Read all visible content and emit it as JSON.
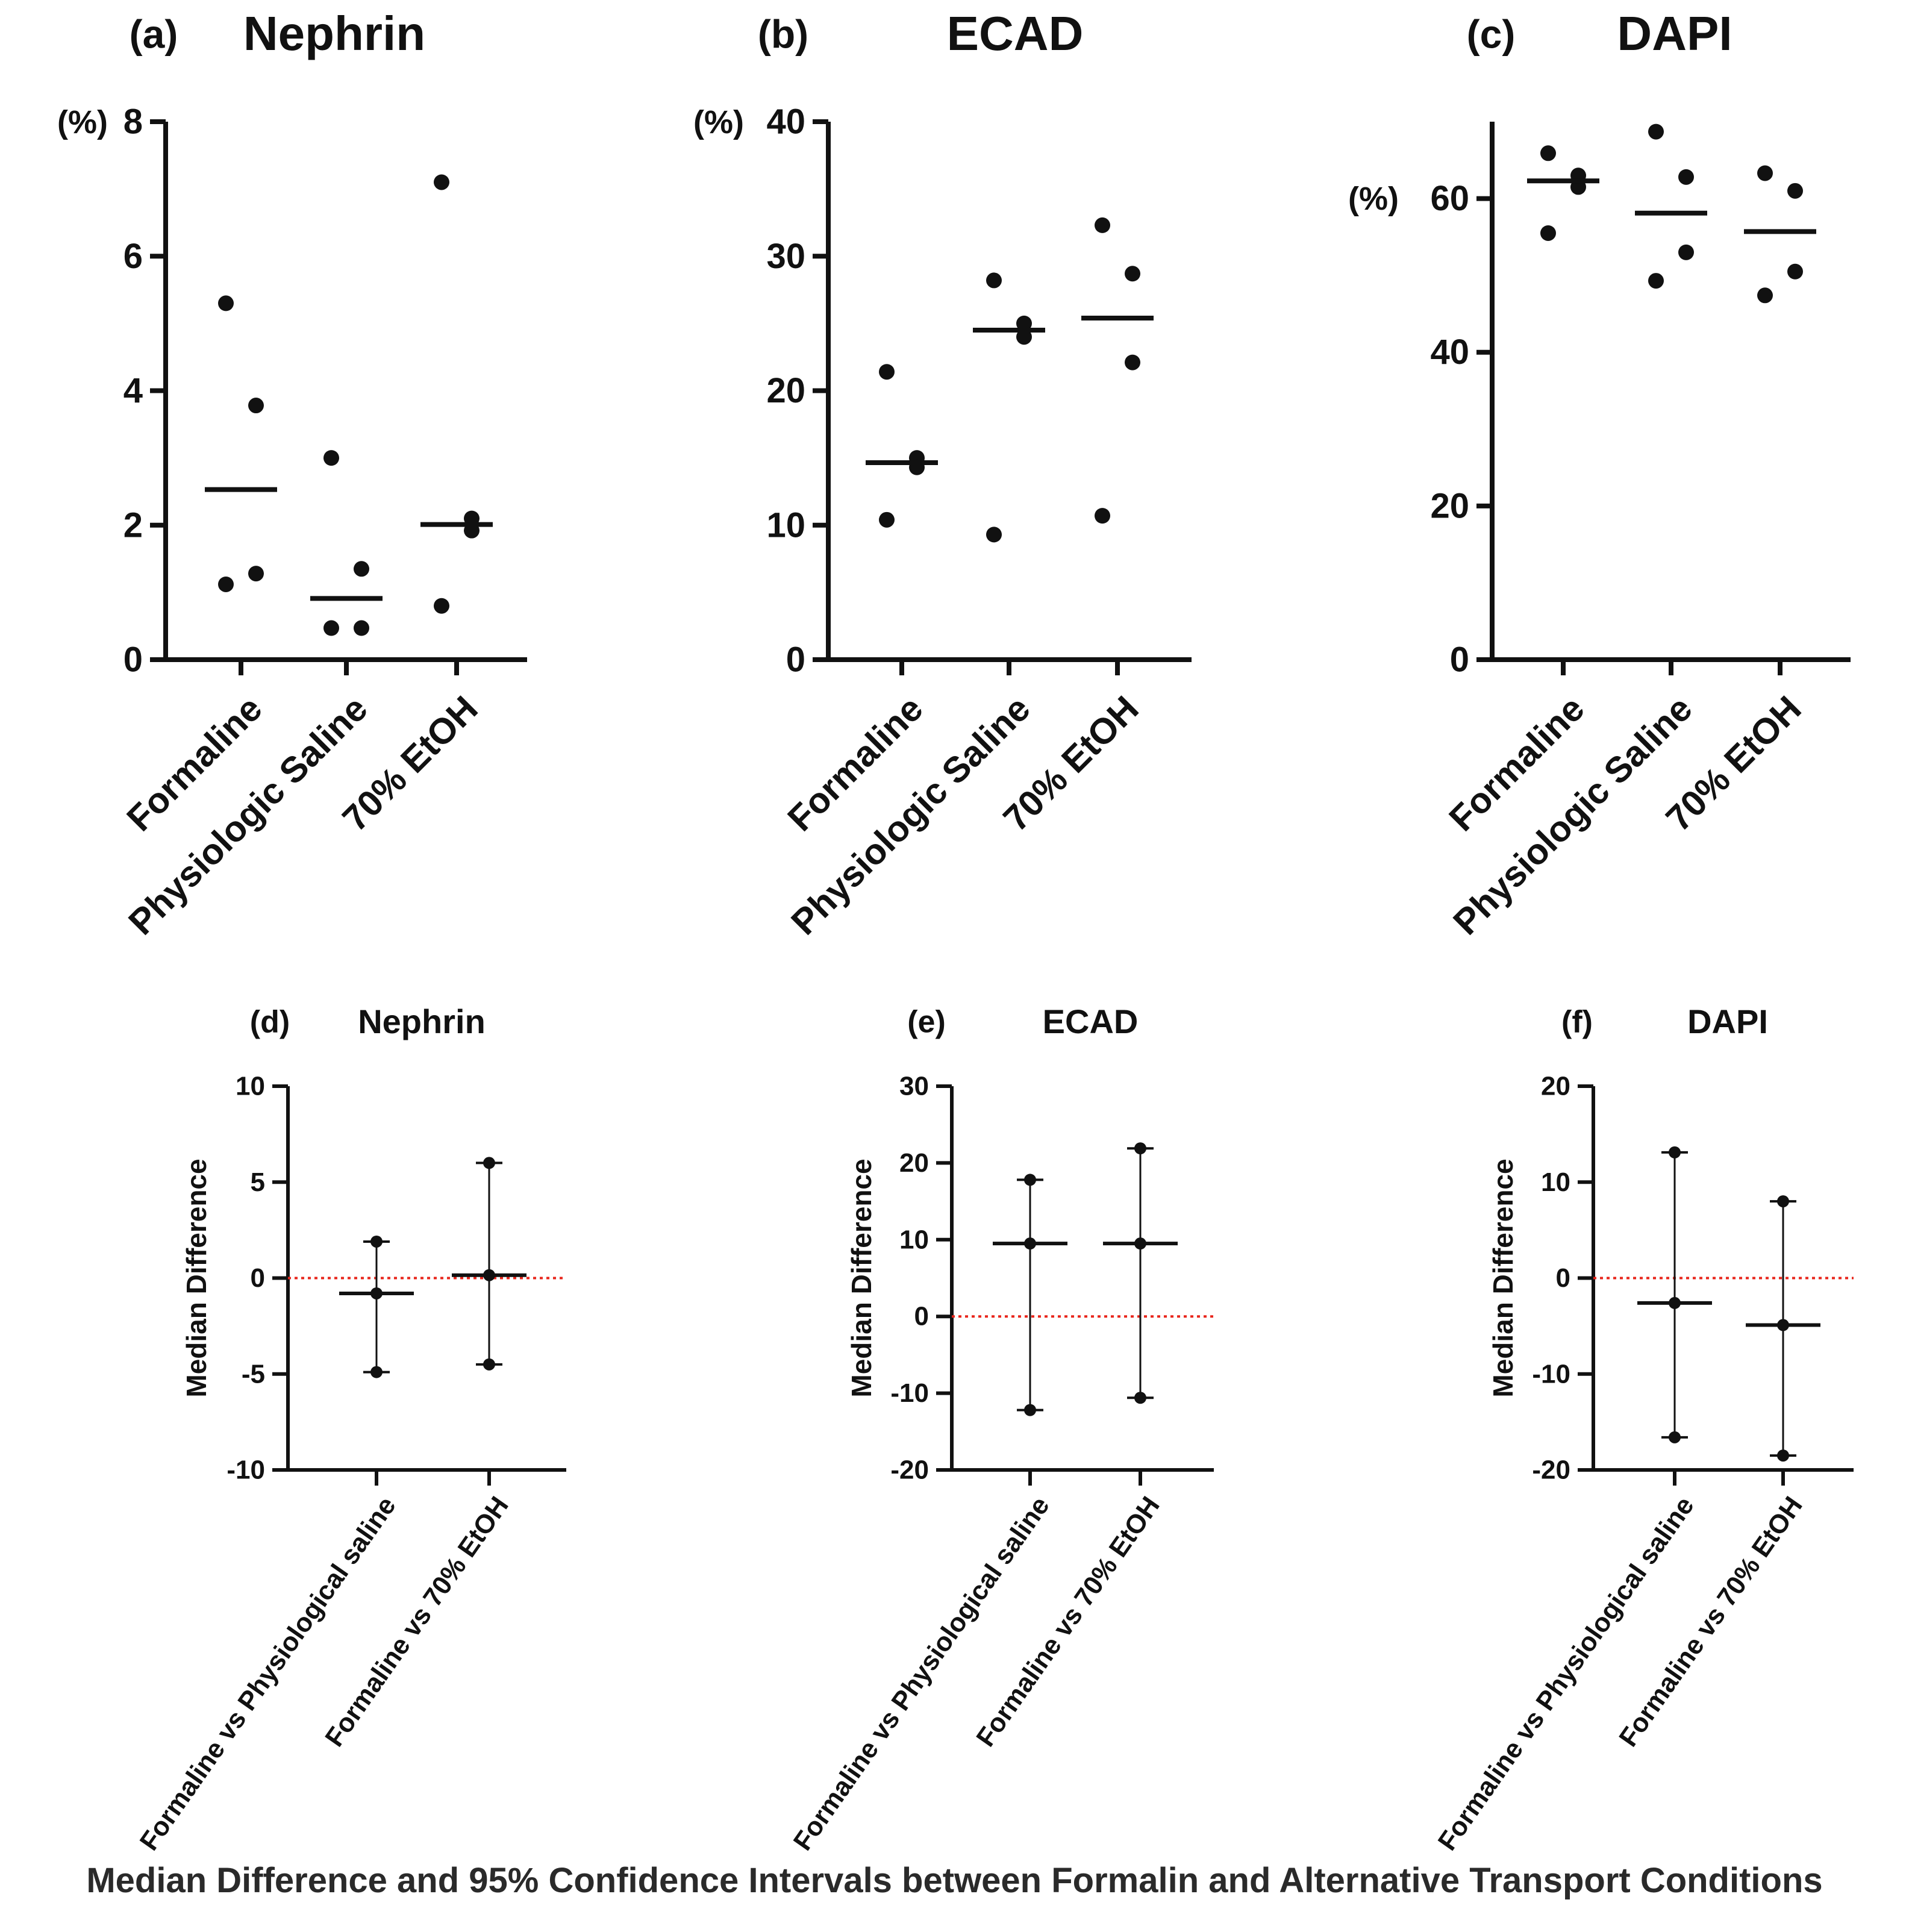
{
  "caption": "Median Difference and 95% Confidence Intervals between Formalin and Alternative Transport Conditions",
  "colors": {
    "ink": "#111111",
    "zero_line": "#e8261c"
  },
  "chart_data": [
    {
      "type": "scatter",
      "panel": "(a)",
      "title": "Nephrin",
      "unit": "(%)",
      "categories": [
        "Formaline",
        "Physiologic Saline",
        "70% EtOH"
      ],
      "ylim": [
        0,
        8
      ],
      "yticks": [
        0,
        2,
        4,
        6,
        8
      ],
      "points": [
        [
          5.3,
          3.78,
          1.28,
          1.12
        ],
        [
          3.0,
          1.35,
          0.47,
          0.47
        ],
        [
          7.1,
          2.1,
          1.92,
          0.8
        ]
      ],
      "medians": [
        2.53,
        0.91,
        2.01
      ]
    },
    {
      "type": "scatter",
      "panel": "(b)",
      "title": "ECAD",
      "unit": "(%)",
      "categories": [
        "Formaline",
        "Physiologic Saline",
        "70% EtOH"
      ],
      "ylim": [
        0,
        40
      ],
      "yticks": [
        0,
        10,
        20,
        30,
        40
      ],
      "points": [
        [
          21.4,
          15.0,
          14.3,
          10.4
        ],
        [
          28.2,
          25.0,
          24.0,
          9.3
        ],
        [
          32.3,
          28.7,
          22.1,
          10.7
        ]
      ],
      "medians": [
        14.65,
        24.5,
        25.4
      ]
    },
    {
      "type": "scatter",
      "panel": "(c)",
      "title": "DAPI",
      "unit": "(%)",
      "categories": [
        "Formaline",
        "Physiologic Saline",
        "70% EtOH"
      ],
      "ylim": [
        0,
        70
      ],
      "yticks": [
        0,
        20,
        40,
        60
      ],
      "points": [
        [
          65.9,
          63.0,
          61.5,
          55.5
        ],
        [
          68.7,
          62.8,
          53.0,
          49.3
        ],
        [
          63.3,
          61.0,
          50.5,
          47.4
        ]
      ],
      "medians": [
        62.3,
        58.1,
        55.7
      ]
    },
    {
      "type": "errorbar",
      "panel": "(d)",
      "title": "Nephrin",
      "ylabel": "Median Difference",
      "categories": [
        "Formaline vs Physiological saline",
        "Formaline vs 70% EtOH"
      ],
      "ylim": [
        -10,
        10
      ],
      "yticks": [
        -10,
        -5,
        0,
        5,
        10
      ],
      "estimates": [
        -0.8,
        0.15
      ],
      "lower": [
        -4.9,
        -4.5
      ],
      "upper": [
        1.9,
        6.0
      ],
      "reference_line": 0
    },
    {
      "type": "errorbar",
      "panel": "(e)",
      "title": "ECAD",
      "ylabel": "Median Difference",
      "categories": [
        "Formaline vs Physiological saline",
        "Formaline vs 70% EtOH"
      ],
      "ylim": [
        -20,
        30
      ],
      "yticks": [
        -20,
        -10,
        0,
        10,
        20,
        30
      ],
      "estimates": [
        9.5,
        9.5
      ],
      "lower": [
        -12.2,
        -10.6
      ],
      "upper": [
        17.8,
        21.9
      ],
      "reference_line": 0
    },
    {
      "type": "errorbar",
      "panel": "(f)",
      "title": "DAPI",
      "ylabel": "Median Difference",
      "categories": [
        "Formaline vs Physiological saline",
        "Formaline vs 70% EtOH"
      ],
      "ylim": [
        -20,
        20
      ],
      "yticks": [
        -20,
        -10,
        0,
        10,
        20
      ],
      "estimates": [
        -2.6,
        -4.9
      ],
      "lower": [
        -16.6,
        -18.5
      ],
      "upper": [
        13.1,
        8.0
      ],
      "reference_line": 0
    }
  ]
}
